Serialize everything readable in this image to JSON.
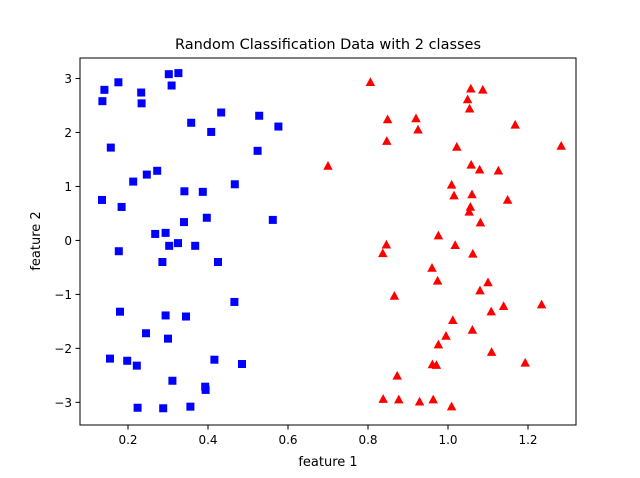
{
  "chart_data": {
    "type": "scatter",
    "title": "Random Classification Data with 2 classes",
    "xlabel": "feature 1",
    "ylabel": "feature 2",
    "xlim": [
      0.08,
      1.32
    ],
    "ylim": [
      -3.42,
      3.38
    ],
    "xticks": [
      0.2,
      0.4,
      0.6,
      0.8,
      1.0,
      1.2
    ],
    "xtick_labels": [
      "0.2",
      "0.4",
      "0.6",
      "0.8",
      "1.0",
      "1.2"
    ],
    "yticks": [
      -3,
      -2,
      -1,
      0,
      1,
      2,
      3
    ],
    "ytick_labels": [
      "−3",
      "−2",
      "−1",
      "0",
      "1",
      "2",
      "3"
    ],
    "grid": false,
    "series": [
      {
        "marker": "square",
        "color": "#0000ff",
        "points": [
          [
            0.141,
            2.79
          ],
          [
            0.176,
            2.93
          ],
          [
            0.136,
            2.58
          ],
          [
            0.233,
            2.74
          ],
          [
            0.234,
            2.54
          ],
          [
            0.302,
            3.08
          ],
          [
            0.326,
            3.1
          ],
          [
            0.309,
            2.87
          ],
          [
            0.433,
            2.37
          ],
          [
            0.358,
            2.18
          ],
          [
            0.408,
            2.01
          ],
          [
            0.528,
            2.31
          ],
          [
            0.576,
            2.11
          ],
          [
            0.524,
            1.66
          ],
          [
            0.157,
            1.72
          ],
          [
            0.273,
            1.29
          ],
          [
            0.247,
            1.22
          ],
          [
            0.213,
            1.09
          ],
          [
            0.467,
            1.04
          ],
          [
            0.341,
            0.91
          ],
          [
            0.387,
            0.9
          ],
          [
            0.135,
            0.75
          ],
          [
            0.184,
            0.62
          ],
          [
            0.397,
            0.42
          ],
          [
            0.34,
            0.34
          ],
          [
            0.562,
            0.38
          ],
          [
            0.268,
            0.12
          ],
          [
            0.294,
            0.14
          ],
          [
            0.325,
            -0.05
          ],
          [
            0.303,
            -0.1
          ],
          [
            0.368,
            -0.1
          ],
          [
            0.177,
            -0.2
          ],
          [
            0.286,
            -0.4
          ],
          [
            0.425,
            -0.4
          ],
          [
            0.466,
            -1.14
          ],
          [
            0.18,
            -1.32
          ],
          [
            0.294,
            -1.39
          ],
          [
            0.345,
            -1.41
          ],
          [
            0.245,
            -1.72
          ],
          [
            0.3,
            -1.82
          ],
          [
            0.155,
            -2.19
          ],
          [
            0.198,
            -2.23
          ],
          [
            0.416,
            -2.21
          ],
          [
            0.222,
            -2.32
          ],
          [
            0.485,
            -2.29
          ],
          [
            0.311,
            -2.6
          ],
          [
            0.393,
            -2.71
          ],
          [
            0.394,
            -2.77
          ],
          [
            0.224,
            -3.1
          ],
          [
            0.288,
            -3.11
          ],
          [
            0.356,
            -3.08
          ]
        ]
      },
      {
        "marker": "triangle",
        "color": "#ff0000",
        "points": [
          [
            0.806,
            2.93
          ],
          [
            1.057,
            2.81
          ],
          [
            1.087,
            2.79
          ],
          [
            1.049,
            2.61
          ],
          [
            1.054,
            2.44
          ],
          [
            0.849,
            2.24
          ],
          [
            0.92,
            2.26
          ],
          [
            1.168,
            2.14
          ],
          [
            0.925,
            2.05
          ],
          [
            0.847,
            1.84
          ],
          [
            1.022,
            1.73
          ],
          [
            1.283,
            1.75
          ],
          [
            0.7,
            1.38
          ],
          [
            1.058,
            1.4
          ],
          [
            1.079,
            1.31
          ],
          [
            1.126,
            1.29
          ],
          [
            1.009,
            1.03
          ],
          [
            1.015,
            0.83
          ],
          [
            1.06,
            0.85
          ],
          [
            1.149,
            0.75
          ],
          [
            1.056,
            0.62
          ],
          [
            1.053,
            0.53
          ],
          [
            1.081,
            0.33
          ],
          [
            0.976,
            0.09
          ],
          [
            0.846,
            -0.08
          ],
          [
            1.018,
            -0.09
          ],
          [
            0.837,
            -0.24
          ],
          [
            1.062,
            -0.25
          ],
          [
            0.96,
            -0.51
          ],
          [
            1.1,
            -0.78
          ],
          [
            0.974,
            -0.75
          ],
          [
            1.08,
            -0.93
          ],
          [
            0.866,
            -1.03
          ],
          [
            1.108,
            -1.32
          ],
          [
            1.139,
            -1.22
          ],
          [
            1.234,
            -1.19
          ],
          [
            1.012,
            -1.48
          ],
          [
            1.061,
            -1.66
          ],
          [
            0.995,
            -1.77
          ],
          [
            0.976,
            -1.93
          ],
          [
            1.109,
            -2.07
          ],
          [
            0.961,
            -2.3
          ],
          [
            0.971,
            -2.31
          ],
          [
            1.193,
            -2.27
          ],
          [
            0.873,
            -2.51
          ],
          [
            0.838,
            -2.94
          ],
          [
            0.877,
            -2.95
          ],
          [
            0.929,
            -2.99
          ],
          [
            0.963,
            -2.95
          ],
          [
            1.009,
            -3.08
          ]
        ]
      }
    ]
  }
}
